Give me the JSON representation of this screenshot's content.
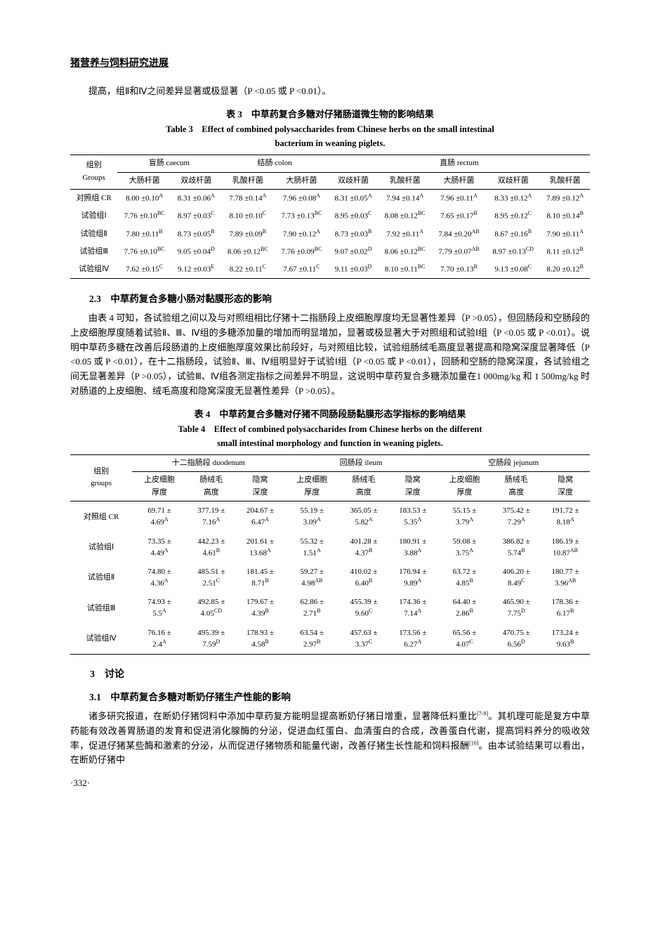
{
  "header": "猪营养与饲料研究进展",
  "intro_para": "提高，组Ⅱ和Ⅳ之间差异显著或极显著（P <0.05 或 P <0.01）。",
  "table3": {
    "caption_cn": "表 3　中草药复合多糖对仔猪肠道微生物的影响结果",
    "caption_en1": "Table 3　Effect of combined polysaccharides from Chinese herbs on the small intestinal",
    "caption_en2": "bacterium in weaning piglets.",
    "group_header1": "组别",
    "group_header2": "Groups",
    "section_caecum": "盲肠 caecum",
    "section_colon": "结肠 colon",
    "section_rectum": "直肠 rectum",
    "cols": [
      "大肠杆菌",
      "双歧杆菌",
      "乳酸杆菌",
      "大肠杆菌",
      "双歧杆菌",
      "乳酸杆菌",
      "大肠杆菌",
      "双歧杆菌",
      "乳酸杆菌"
    ],
    "rows": [
      {
        "g": "对照组 CR",
        "c": [
          "8.00 ±0.10<sup>A</sup>",
          "8.31 ±0.06<sup>A</sup>",
          "7.78 ±0.14<sup>A</sup>",
          "7.96 ±0.08<sup>A</sup>",
          "8.31 ±0.05<sup>A</sup>",
          "7.94 ±0.14<sup>A</sup>",
          "7.96 ±0.11<sup>A</sup>",
          "8.33 ±0.12<sup>A</sup>",
          "7.89 ±0.12<sup>A</sup>"
        ]
      },
      {
        "g": "试验组Ⅰ",
        "c": [
          "7.76 ±0.10<sup>BC</sup>",
          "8.97 ±0.03<sup>C</sup>",
          "8.10 ±0.10<sup>C</sup>",
          "7.73 ±0.13<sup>BC</sup>",
          "8.95 ±0.03<sup>C</sup>",
          "8.08 ±0.12<sup>BC</sup>",
          "7.65 ±0.17<sup>B</sup>",
          "8.95 ±0.12<sup>C</sup>",
          "8.10 ±0.14<sup>B</sup>"
        ]
      },
      {
        "g": "试验组Ⅱ",
        "c": [
          "7.80 ±0.11<sup>B</sup>",
          "8.73 ±0.05<sup>B</sup>",
          "7.89 ±0.09<sup>B</sup>",
          "7.90 ±0.12<sup>A</sup>",
          "8.73 ±0.03<sup>B</sup>",
          "7.92 ±0.11<sup>A</sup>",
          "7.84 ±0.20<sup>AB</sup>",
          "8.67 ±0.16<sup>B</sup>",
          "7.90 ±0.11<sup>A</sup>"
        ]
      },
      {
        "g": "试验组Ⅲ",
        "c": [
          "7.76 ±0.10<sup>BC</sup>",
          "9.05 ±0.04<sup>D</sup>",
          "8.06 ±0.12<sup>BC</sup>",
          "7.76 ±0.09<sup>BC</sup>",
          "9.07 ±0.02<sup>D</sup>",
          "8.06 ±0.12<sup>BC</sup>",
          "7.79 ±0.07<sup>AB</sup>",
          "8.97 ±0.13<sup>CD</sup>",
          "8.11 ±0.12<sup>B</sup>"
        ]
      },
      {
        "g": "试验组Ⅳ",
        "c": [
          "7.62 ±0.15<sup>C</sup>",
          "9.12 ±0.03<sup>E</sup>",
          "8.22 ±0.11<sup>C</sup>",
          "7.67 ±0.11<sup>C</sup>",
          "9.11 ±0.03<sup>D</sup>",
          "8.10 ±0.11<sup>BC</sup>",
          "7.70 ±0.13<sup>B</sup>",
          "9.13 ±0.08<sup>C</sup>",
          "8.20 ±0.12<sup>B</sup>"
        ]
      }
    ]
  },
  "section23_heading": "2.3　中草药复合多糖小肠对黏膜形态的影响",
  "section23_para": "由表 4 可知，各试验组之间以及与对照组相比仔猪十二指肠段上皮细胞厚度均无显著性差异（P >0.05），但回肠段和空肠段的上皮细胞厚度随着试验Ⅱ、Ⅲ、Ⅳ组的多糖添加量的增加而明显增加，显著或极显著大于对照组和试验Ⅰ组（P <0.05 或 P <0.01）。说明中草药多糖在改善后段肠道的上皮细胞厚度效果比前段好，与对照组比较，试验组肠绒毛高度显著提高和隐窝深度显著降低（P <0.05 或 P <0.01），在十二指肠段，试验Ⅱ、Ⅲ、Ⅳ组明显好于试验Ⅰ组（P <0.05 或 P <0.01），回肠和空肠的隐窝深度，各试验组之间无显著差异（P >0.05），试验Ⅲ、Ⅳ组各测定指标之间差异不明显，这说明中草药复合多糖添加量在1 000mg/kg 和 1 500mg/kg 时对肠道的上皮细胞、绒毛高度和隐窝深度无显著性差异（P >0.05）。",
  "table4": {
    "caption_cn": "表 4　中草药复合多糖对仔猪不同肠段肠黏膜形态学指标的影响结果",
    "caption_en1": "Table 4　Effect of combined polysaccharides from Chinese herbs on the different",
    "caption_en2": "small intestinal morphology and function in weaning piglets.",
    "group_header1": "组别",
    "group_header2": "groups",
    "section_duodenum": "十二指肠段 duodenum",
    "section_ileum": "回肠段 ileum",
    "section_jejunum": "空肠段 jejunum",
    "subcols": [
      "上皮细胞<br>厚度",
      "肠绒毛<br>高度",
      "隐窝<br>深度",
      "上皮细胞<br>厚度",
      "肠绒毛<br>高度",
      "隐窝<br>深度",
      "上皮细胞<br>厚度",
      "肠绒毛<br>高度",
      "隐窝<br>深度"
    ],
    "rows": [
      {
        "g": "对照组 CR",
        "c": [
          "69.71 ±<br>4.69<sup>A</sup>",
          "377.19 ±<br>7.16<sup>A</sup>",
          "204.67 ±<br>6.47<sup>A</sup>",
          "55.19 ±<br>3.09<sup>A</sup>",
          "365.05 ±<br>5.82<sup>A</sup>",
          "183.53 ±<br>5.35<sup>A</sup>",
          "55.15 ±<br>3.79<sup>A</sup>",
          "375.42 ±<br>7.29<sup>A</sup>",
          "191.72 ±<br>8.18<sup>A</sup>"
        ]
      },
      {
        "g": "试验组Ⅰ",
        "c": [
          "73.35 ±<br>4.49<sup>A</sup>",
          "442.23 ±<br>4.61<sup>B</sup>",
          "201.61 ±<br>13.68<sup>A</sup>",
          "55.32 ±<br>1.51<sup>A</sup>",
          "401.28 ±<br>4.37<sup>B</sup>",
          "180.91 ±<br>3.88<sup>A</sup>",
          "59.08 ±<br>3.75<sup>A</sup>",
          "386.82 ±<br>5.74<sup>B</sup>",
          "186.19 ±<br>10.87<sup>AB</sup>"
        ]
      },
      {
        "g": "试验组Ⅱ",
        "c": [
          "74.80 ±<br>4.36<sup>A</sup>",
          "485.51 ±<br>2.51<sup>C</sup>",
          "181.45 ±<br>8.71<sup>B</sup>",
          "59.27 ±<br>4.98<sup>AB</sup>",
          "410.02 ±<br>6.40<sup>B</sup>",
          "176.94 ±<br>9.89<sup>A</sup>",
          "63.72 ±<br>4.85<sup>B</sup>",
          "406.20 ±<br>8.49<sup>C</sup>",
          "180.77 ±<br>3.96<sup>AB</sup>"
        ]
      },
      {
        "g": "试验组Ⅲ",
        "c": [
          "74.93 ±<br>5.5<sup>A</sup>",
          "492.85 ±<br>4.05<sup>CD</sup>",
          "179.67 ±<br>4.39<sup>B</sup>",
          "62.86 ±<br>2.71<sup>B</sup>",
          "455.39 ±<br>9.60<sup>C</sup>",
          "174.36 ±<br>7.14<sup>A</sup>",
          "64.40 ±<br>2.86<sup>B</sup>",
          "465.90 ±<br>7.75<sup>D</sup>",
          "178.36 ±<br>6.17<sup>B</sup>"
        ]
      },
      {
        "g": "试验组Ⅳ",
        "c": [
          "76.16 ±<br>2.4<sup>A</sup>",
          "495.39 ±<br>7.59<sup>D</sup>",
          "178.93 ±<br>4.58<sup>B</sup>",
          "63.54 ±<br>2.97<sup>B</sup>",
          "457.63 ±<br>3.37<sup>C</sup>",
          "173.56 ±<br>6.27<sup>A</sup>",
          "65.56 ±<br>4.07<sup>C</sup>",
          "470.75 ±<br>6.56<sup>D</sup>",
          "173.24 ±<br>9.63<sup>B</sup>"
        ]
      }
    ]
  },
  "section3_heading": "3　讨论",
  "section31_heading": "3.1　中草药复合多糖对断奶仔猪生产性能的影响",
  "section31_para": "诸多研究报道，在断奶仔猪饲料中添加中草药复方能明显提高断奶仔猪日增重，显著降低料重比<sup>[7-9]</sup>。其机理可能是复方中草药能有效改善胃肠道的发育和促进消化腺酶的分泌，促进血红蛋白、血清蛋白的合成，改善蛋白代谢，提高饲料养分的吸收效率，促进仔猪某些酶和激素的分泌，从而促进仔猪物质和能量代谢，改善仔猪生长性能和饲料报酬<sup>[10]</sup>。由本试验结果可以看出，在断奶仔猪中",
  "page_number": "·332·"
}
